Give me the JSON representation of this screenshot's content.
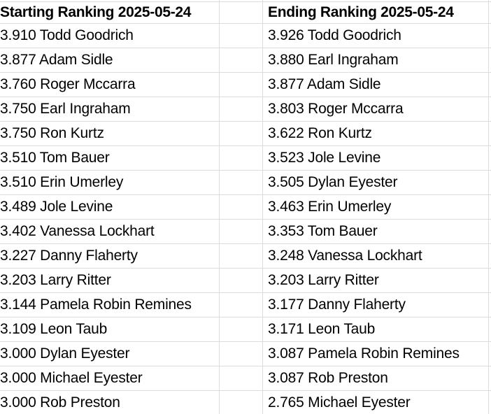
{
  "app": {
    "kind": "spreadsheet-cells-crop"
  },
  "colors": {
    "background": "#ffffff",
    "gridline": "#dcdcdc",
    "text": "#000000"
  },
  "table": {
    "columns": [
      {
        "header": "Starting Ranking 2025-05-24"
      },
      {
        "header": "Ending Ranking 2025-05-24"
      }
    ],
    "rows": [
      {
        "starting": "3.910 Todd Goodrich",
        "ending": "3.926 Todd Goodrich"
      },
      {
        "starting": "3.877 Adam Sidle",
        "ending": "3.880 Earl Ingraham"
      },
      {
        "starting": "3.760 Roger Mccarra",
        "ending": "3.877 Adam Sidle"
      },
      {
        "starting": "3.750 Earl Ingraham",
        "ending": "3.803 Roger Mccarra"
      },
      {
        "starting": "3.750 Ron Kurtz",
        "ending": "3.622 Ron Kurtz"
      },
      {
        "starting": "3.510 Tom Bauer",
        "ending": "3.523 Jole Levine"
      },
      {
        "starting": "3.510 Erin Umerley",
        "ending": "3.505 Dylan Eyester"
      },
      {
        "starting": "3.489 Jole Levine",
        "ending": "3.463 Erin Umerley"
      },
      {
        "starting": "3.402 Vanessa Lockhart",
        "ending": "3.353 Tom Bauer"
      },
      {
        "starting": "3.227 Danny Flaherty",
        "ending": "3.248 Vanessa Lockhart"
      },
      {
        "starting": "3.203 Larry Ritter",
        "ending": "3.203 Larry Ritter"
      },
      {
        "starting": "3.144 Pamela Robin Remines",
        "ending": "3.177 Danny Flaherty"
      },
      {
        "starting": "3.109 Leon Taub",
        "ending": "3.171 Leon Taub"
      },
      {
        "starting": "3.000 Dylan Eyester",
        "ending": "3.087 Pamela Robin Remines"
      },
      {
        "starting": "3.000 Michael Eyester",
        "ending": "3.087 Rob Preston"
      },
      {
        "starting": "3.000 Rob Preston",
        "ending": "2.765 Michael Eyester"
      }
    ]
  }
}
